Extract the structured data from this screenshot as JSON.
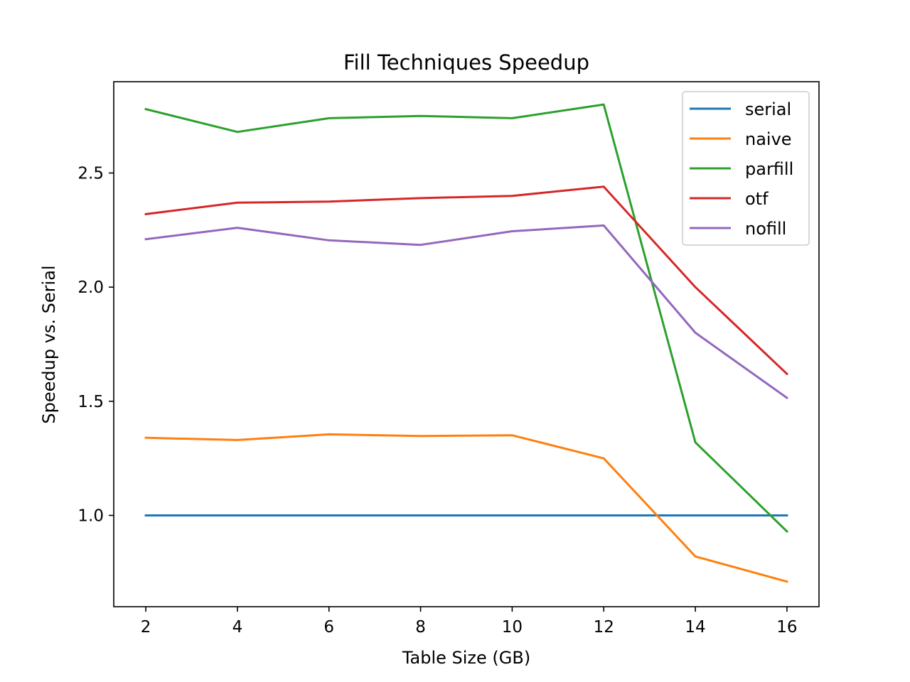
{
  "chart_data": {
    "type": "line",
    "title": "Fill Techniques Speedup",
    "xlabel": "Table Size (GB)",
    "ylabel": "Speedup vs. Serial",
    "x": [
      2,
      4,
      6,
      8,
      10,
      12,
      14,
      16
    ],
    "xticks": [
      2,
      4,
      6,
      8,
      10,
      12,
      14,
      16
    ],
    "yticks": [
      1.0,
      1.5,
      2.0,
      2.5
    ],
    "ytick_labels": [
      "1.0",
      "1.5",
      "2.0",
      "2.5"
    ],
    "xlim": [
      1.3,
      16.7
    ],
    "ylim": [
      0.6,
      2.9
    ],
    "grid": false,
    "legend_position": "top-right",
    "series": [
      {
        "name": "serial",
        "color": "#1f77b4",
        "values": [
          1.0,
          1.0,
          1.0,
          1.0,
          1.0,
          1.0,
          1.0,
          1.0
        ]
      },
      {
        "name": "naive",
        "color": "#ff7f0e",
        "values": [
          1.34,
          1.33,
          1.355,
          1.348,
          1.351,
          1.25,
          0.82,
          0.71
        ]
      },
      {
        "name": "parfill",
        "color": "#2ca02c",
        "values": [
          2.78,
          2.68,
          2.74,
          2.75,
          2.74,
          2.8,
          1.32,
          0.93
        ]
      },
      {
        "name": "otf",
        "color": "#d62728",
        "values": [
          2.32,
          2.37,
          2.375,
          2.39,
          2.4,
          2.44,
          2.0,
          1.62
        ]
      },
      {
        "name": "nofill",
        "color": "#9467bd",
        "values": [
          2.21,
          2.26,
          2.205,
          2.185,
          2.245,
          2.27,
          1.8,
          1.515
        ]
      }
    ]
  }
}
